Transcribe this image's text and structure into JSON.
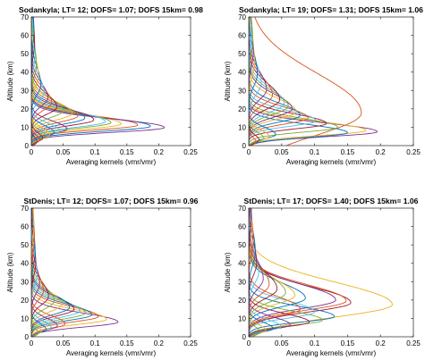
{
  "chart_data": [
    {
      "type": "line",
      "title": "Sodankyla; LT= 12; DOFS= 1.07; DOFS 15km= 0.98",
      "xlabel": "Averaging kernels (vmr/vmr)",
      "ylabel": "Altitude (km)",
      "xlim": [
        0,
        0.25
      ],
      "ylim": [
        0,
        70
      ],
      "xticks": [
        "0",
        "0.05",
        "0.1",
        "0.15",
        "0.2",
        "0.25"
      ],
      "yticks": [
        "0",
        "10",
        "20",
        "30",
        "40",
        "50",
        "60",
        "70"
      ],
      "series": [
        {
          "color": "#0072bd",
          "peak_x": 0.187,
          "peak_y": 10.5,
          "width": 3.6
        },
        {
          "color": "#d95319",
          "peak_x": 0.167,
          "peak_y": 11.2,
          "width": 3.6
        },
        {
          "color": "#edb120",
          "peak_x": 0.141,
          "peak_y": 11.8,
          "width": 3.8
        },
        {
          "color": "#7e2f8e",
          "peak_x": 0.209,
          "peak_y": 9.8,
          "width": 3.5
        },
        {
          "color": "#77ac30",
          "peak_x": 0.125,
          "peak_y": 12.5,
          "width": 3.9
        },
        {
          "color": "#4dbeee",
          "peak_x": 0.116,
          "peak_y": 13.0,
          "width": 4.0
        },
        {
          "color": "#a2142f",
          "peak_x": 0.098,
          "peak_y": 14.0,
          "width": 4.2
        },
        {
          "color": "#0072bd",
          "peak_x": 0.084,
          "peak_y": 15.0,
          "width": 4.4
        },
        {
          "color": "#d95319",
          "peak_x": 0.073,
          "peak_y": 16.2,
          "width": 4.6
        },
        {
          "color": "#edb120",
          "peak_x": 0.064,
          "peak_y": 17.5,
          "width": 4.8
        },
        {
          "color": "#7e2f8e",
          "peak_x": 0.056,
          "peak_y": 9.0,
          "width": 3.2
        },
        {
          "color": "#77ac30",
          "peak_x": 0.05,
          "peak_y": 19.0,
          "width": 5.0
        },
        {
          "color": "#4dbeee",
          "peak_x": 0.045,
          "peak_y": 8.0,
          "width": 3.0
        },
        {
          "color": "#a2142f",
          "peak_x": 0.04,
          "peak_y": 21.0,
          "width": 5.3
        },
        {
          "color": "#0072bd",
          "peak_x": 0.036,
          "peak_y": 7.0,
          "width": 2.8
        },
        {
          "color": "#d95319",
          "peak_x": 0.032,
          "peak_y": 23.5,
          "width": 5.6
        },
        {
          "color": "#edb120",
          "peak_x": 0.029,
          "peak_y": 6.0,
          "width": 2.6
        },
        {
          "color": "#7e2f8e",
          "peak_x": 0.026,
          "peak_y": 26.0,
          "width": 6.0
        },
        {
          "color": "#77ac30",
          "peak_x": 0.023,
          "peak_y": 5.0,
          "width": 2.4
        },
        {
          "color": "#4dbeee",
          "peak_x": 0.02,
          "peak_y": 29.0,
          "width": 6.4
        },
        {
          "color": "#a2142f",
          "peak_x": 0.018,
          "peak_y": 4.0,
          "width": 2.2
        },
        {
          "color": "#0072bd",
          "peak_x": 0.015,
          "peak_y": 33.0,
          "width": 7.0
        },
        {
          "color": "#d95319",
          "peak_x": 0.013,
          "peak_y": 3.0,
          "width": 2.0
        },
        {
          "color": "#edb120",
          "peak_x": 0.011,
          "peak_y": 38.0,
          "width": 7.6
        },
        {
          "color": "#7e2f8e",
          "peak_x": 0.009,
          "peak_y": 2.0,
          "width": 1.8
        },
        {
          "color": "#77ac30",
          "peak_x": 0.008,
          "peak_y": 44.0,
          "width": 8.2
        },
        {
          "color": "#4dbeee",
          "peak_x": 0.006,
          "peak_y": 50.0,
          "width": 8.8
        },
        {
          "color": "#a2142f",
          "peak_x": 0.005,
          "peak_y": 56.0,
          "width": 9.4
        },
        {
          "color": "#0072bd",
          "peak_x": 0.004,
          "peak_y": 62.0,
          "width": 10.0
        }
      ]
    },
    {
      "type": "line",
      "title": "Sodankyla; LT= 19; DOFS= 1.31; DOFS 15km= 1.06",
      "xlabel": "Averaging kernels (vmr/vmr)",
      "ylabel": "Altitude (km)",
      "xlim": [
        0,
        0.25
      ],
      "ylim": [
        0,
        70
      ],
      "xticks": [
        "0",
        "0.05",
        "0.1",
        "0.15",
        "0.2",
        "0.25"
      ],
      "yticks": [
        "0",
        "10",
        "20",
        "30",
        "40",
        "50",
        "60",
        "70"
      ],
      "series": [
        {
          "color": "#d95319",
          "peak_x": 0.171,
          "peak_y": 17.8,
          "width": 16.0
        },
        {
          "color": "#7e2f8e",
          "peak_x": 0.195,
          "peak_y": 7.5,
          "width": 3.5
        },
        {
          "color": "#edb120",
          "peak_x": 0.178,
          "peak_y": 8.2,
          "width": 3.6
        },
        {
          "color": "#0072bd",
          "peak_x": 0.15,
          "peak_y": 7.0,
          "width": 3.3
        },
        {
          "color": "#77ac30",
          "peak_x": 0.135,
          "peak_y": 10.0,
          "width": 3.6
        },
        {
          "color": "#a2142f",
          "peak_x": 0.118,
          "peak_y": 12.0,
          "width": 3.8
        },
        {
          "color": "#4dbeee",
          "peak_x": 0.102,
          "peak_y": 13.5,
          "width": 4.0
        },
        {
          "color": "#d95319",
          "peak_x": 0.09,
          "peak_y": 15.0,
          "width": 4.4
        },
        {
          "color": "#0072bd",
          "peak_x": 0.078,
          "peak_y": 16.5,
          "width": 4.8
        },
        {
          "color": "#edb120",
          "peak_x": 0.072,
          "peak_y": 18.5,
          "width": 5.4
        },
        {
          "color": "#7e2f8e",
          "peak_x": 0.066,
          "peak_y": 20.0,
          "width": 5.8
        },
        {
          "color": "#77ac30",
          "peak_x": 0.06,
          "peak_y": 21.5,
          "width": 6.0
        },
        {
          "color": "#4dbeee",
          "peak_x": 0.054,
          "peak_y": 23.0,
          "width": 6.3
        },
        {
          "color": "#a2142f",
          "peak_x": 0.047,
          "peak_y": 25.0,
          "width": 6.6
        },
        {
          "color": "#0072bd",
          "peak_x": 0.041,
          "peak_y": 6.0,
          "width": 2.9
        },
        {
          "color": "#d95319",
          "peak_x": 0.036,
          "peak_y": 27.5,
          "width": 7.0
        },
        {
          "color": "#edb120",
          "peak_x": 0.031,
          "peak_y": 5.0,
          "width": 2.6
        },
        {
          "color": "#7e2f8e",
          "peak_x": 0.027,
          "peak_y": 30.5,
          "width": 7.4
        },
        {
          "color": "#77ac30",
          "peak_x": 0.023,
          "peak_y": 4.0,
          "width": 2.3
        },
        {
          "color": "#4dbeee",
          "peak_x": 0.019,
          "peak_y": 34.0,
          "width": 8.0
        },
        {
          "color": "#a2142f",
          "peak_x": 0.016,
          "peak_y": 3.0,
          "width": 2.0
        },
        {
          "color": "#0072bd",
          "peak_x": 0.013,
          "peak_y": 39.0,
          "width": 8.6
        },
        {
          "color": "#d95319",
          "peak_x": 0.011,
          "peak_y": 2.0,
          "width": 1.8
        },
        {
          "color": "#edb120",
          "peak_x": 0.009,
          "peak_y": 45.0,
          "width": 9.2
        },
        {
          "color": "#7e2f8e",
          "peak_x": 0.007,
          "peak_y": 51.0,
          "width": 9.8
        },
        {
          "color": "#77ac30",
          "peak_x": 0.006,
          "peak_y": 57.0,
          "width": 10.4
        },
        {
          "color": "#4dbeee",
          "peak_x": 0.004,
          "peak_y": 63.0,
          "width": 11.0
        }
      ]
    },
    {
      "type": "line",
      "title": "StDenis; LT= 12; DOFS= 1.07; DOFS 15km= 0.96",
      "xlabel": "Averaging kernels (vmr/vmr)",
      "ylabel": "Altitude (km)",
      "xlim": [
        0,
        0.25
      ],
      "ylim": [
        0,
        70
      ],
      "xticks": [
        "0",
        "0.05",
        "0.1",
        "0.15",
        "0.2",
        "0.25"
      ],
      "yticks": [
        "0",
        "10",
        "20",
        "30",
        "40",
        "50",
        "60",
        "70"
      ],
      "series": [
        {
          "color": "#7e2f8e",
          "peak_x": 0.136,
          "peak_y": 8.0,
          "width": 3.6
        },
        {
          "color": "#edb120",
          "peak_x": 0.118,
          "peak_y": 9.5,
          "width": 3.8
        },
        {
          "color": "#d95319",
          "peak_x": 0.105,
          "peak_y": 11.0,
          "width": 4.0
        },
        {
          "color": "#0072bd",
          "peak_x": 0.095,
          "peak_y": 12.0,
          "width": 4.2
        },
        {
          "color": "#77ac30",
          "peak_x": 0.085,
          "peak_y": 13.0,
          "width": 4.4
        },
        {
          "color": "#4dbeee",
          "peak_x": 0.076,
          "peak_y": 14.0,
          "width": 4.6
        },
        {
          "color": "#a2142f",
          "peak_x": 0.067,
          "peak_y": 15.0,
          "width": 4.8
        },
        {
          "color": "#0072bd",
          "peak_x": 0.06,
          "peak_y": 16.0,
          "width": 5.0
        },
        {
          "color": "#d95319",
          "peak_x": 0.053,
          "peak_y": 7.0,
          "width": 3.3
        },
        {
          "color": "#edb120",
          "peak_x": 0.047,
          "peak_y": 17.5,
          "width": 5.3
        },
        {
          "color": "#7e2f8e",
          "peak_x": 0.041,
          "peak_y": 6.0,
          "width": 3.0
        },
        {
          "color": "#77ac30",
          "peak_x": 0.036,
          "peak_y": 19.5,
          "width": 5.6
        },
        {
          "color": "#4dbeee",
          "peak_x": 0.031,
          "peak_y": 5.0,
          "width": 2.7
        },
        {
          "color": "#a2142f",
          "peak_x": 0.027,
          "peak_y": 22.0,
          "width": 6.0
        },
        {
          "color": "#0072bd",
          "peak_x": 0.023,
          "peak_y": 4.0,
          "width": 2.4
        },
        {
          "color": "#d95319",
          "peak_x": 0.019,
          "peak_y": 25.0,
          "width": 6.4
        },
        {
          "color": "#edb120",
          "peak_x": 0.016,
          "peak_y": 3.0,
          "width": 2.1
        },
        {
          "color": "#7e2f8e",
          "peak_x": 0.013,
          "peak_y": 29.0,
          "width": 7.0
        },
        {
          "color": "#77ac30",
          "peak_x": 0.011,
          "peak_y": 2.0,
          "width": 1.8
        },
        {
          "color": "#4dbeee",
          "peak_x": 0.009,
          "peak_y": 34.0,
          "width": 7.6
        },
        {
          "color": "#a2142f",
          "peak_x": 0.007,
          "peak_y": 40.0,
          "width": 8.2
        },
        {
          "color": "#0072bd",
          "peak_x": 0.006,
          "peak_y": 46.0,
          "width": 8.8
        },
        {
          "color": "#d95319",
          "peak_x": 0.005,
          "peak_y": 53.0,
          "width": 9.4
        },
        {
          "color": "#edb120",
          "peak_x": 0.004,
          "peak_y": 60.0,
          "width": 10.0
        }
      ]
    },
    {
      "type": "line",
      "title": "StDenis; LT= 17; DOFS= 1.40; DOFS 15km= 1.06",
      "xlabel": "Averaging kernels (vmr/vmr)",
      "ylabel": "Altitude (km)",
      "xlim": [
        0,
        0.25
      ],
      "ylim": [
        0,
        70
      ],
      "xticks": [
        "0",
        "0.05",
        "0.1",
        "0.15",
        "0.2",
        "0.25"
      ],
      "yticks": [
        "0",
        "10",
        "20",
        "30",
        "40",
        "50",
        "60",
        "70"
      ],
      "series": [
        {
          "color": "#edb120",
          "peak_x": 0.218,
          "peak_y": 17.5,
          "width": 9.0
        },
        {
          "color": "#a2142f",
          "peak_x": 0.155,
          "peak_y": 18.5,
          "width": 6.5
        },
        {
          "color": "#d95319",
          "peak_x": 0.148,
          "peak_y": 19.5,
          "width": 6.5
        },
        {
          "color": "#7e2f8e",
          "peak_x": 0.132,
          "peak_y": 20.0,
          "width": 6.3
        },
        {
          "color": "#0072bd",
          "peak_x": 0.13,
          "peak_y": 11.0,
          "width": 4.0
        },
        {
          "color": "#77ac30",
          "peak_x": 0.112,
          "peak_y": 9.0,
          "width": 3.6
        },
        {
          "color": "#4dbeee",
          "peak_x": 0.1,
          "peak_y": 13.5,
          "width": 4.4
        },
        {
          "color": "#a2142f",
          "peak_x": 0.092,
          "peak_y": 8.0,
          "width": 3.4
        },
        {
          "color": "#0072bd",
          "peak_x": 0.086,
          "peak_y": 21.0,
          "width": 6.0
        },
        {
          "color": "#d95319",
          "peak_x": 0.078,
          "peak_y": 15.0,
          "width": 4.8
        },
        {
          "color": "#edb120",
          "peak_x": 0.07,
          "peak_y": 22.5,
          "width": 6.2
        },
        {
          "color": "#7e2f8e",
          "peak_x": 0.063,
          "peak_y": 6.5,
          "width": 3.1
        },
        {
          "color": "#77ac30",
          "peak_x": 0.056,
          "peak_y": 24.0,
          "width": 6.4
        },
        {
          "color": "#4dbeee",
          "peak_x": 0.049,
          "peak_y": 5.5,
          "width": 2.8
        },
        {
          "color": "#a2142f",
          "peak_x": 0.043,
          "peak_y": 26.0,
          "width": 6.7
        },
        {
          "color": "#0072bd",
          "peak_x": 0.037,
          "peak_y": 4.5,
          "width": 2.5
        },
        {
          "color": "#d95319",
          "peak_x": 0.031,
          "peak_y": 28.5,
          "width": 7.0
        },
        {
          "color": "#edb120",
          "peak_x": 0.026,
          "peak_y": 3.5,
          "width": 2.2
        },
        {
          "color": "#7e2f8e",
          "peak_x": 0.022,
          "peak_y": 31.5,
          "width": 7.4
        },
        {
          "color": "#77ac30",
          "peak_x": 0.018,
          "peak_y": 2.5,
          "width": 2.0
        },
        {
          "color": "#4dbeee",
          "peak_x": 0.015,
          "peak_y": 35.0,
          "width": 8.0
        },
        {
          "color": "#a2142f",
          "peak_x": 0.012,
          "peak_y": 40.0,
          "width": 8.6
        },
        {
          "color": "#0072bd",
          "peak_x": 0.01,
          "peak_y": 46.0,
          "width": 9.2
        },
        {
          "color": "#d95319",
          "peak_x": 0.007,
          "peak_y": 52.0,
          "width": 9.8
        },
        {
          "color": "#edb120",
          "peak_x": 0.005,
          "peak_y": 59.0,
          "width": 10.4
        },
        {
          "color": "#7e2f8e",
          "peak_x": 0.004,
          "peak_y": 65.0,
          "width": 11.0
        }
      ]
    }
  ]
}
